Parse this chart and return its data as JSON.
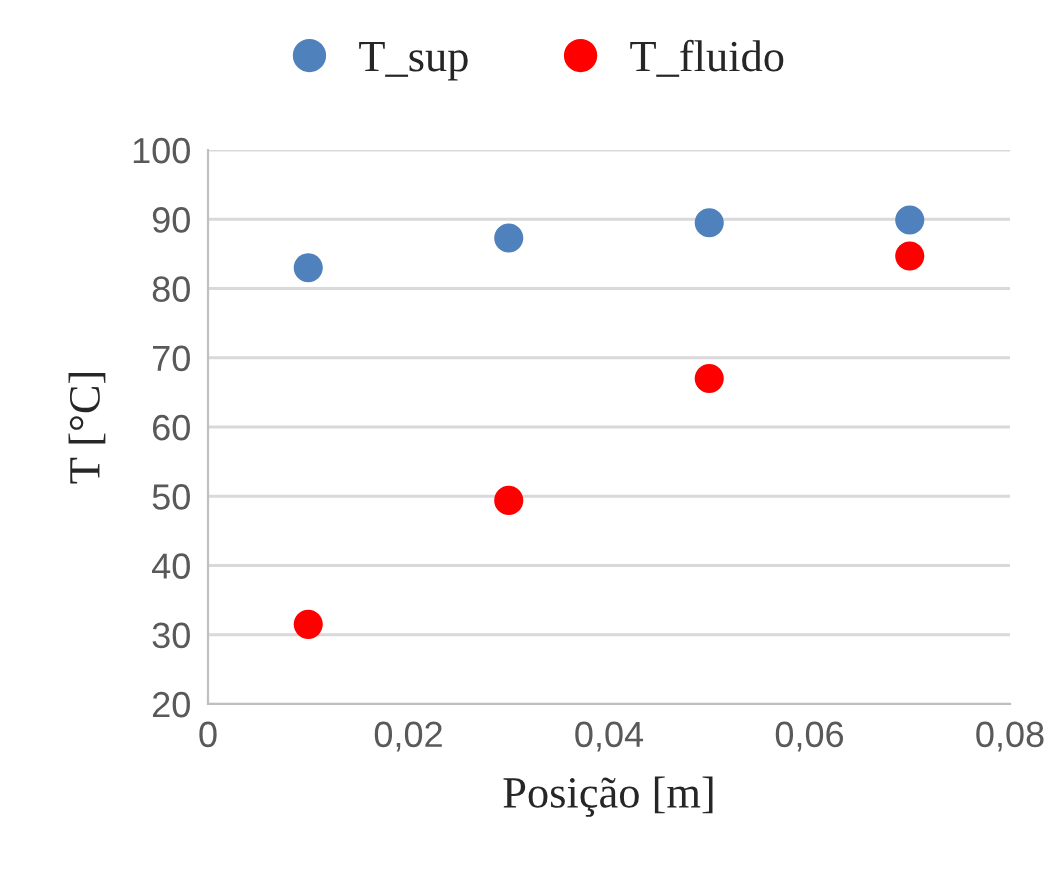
{
  "chart_data": {
    "type": "scatter",
    "xlabel": "Posição [m]",
    "ylabel": "T [°C]",
    "series": [
      {
        "name": "T_sup",
        "color": "#4f81bd",
        "x": [
          0.01,
          0.03,
          0.05,
          0.07
        ],
        "values": [
          83.0,
          87.3,
          89.5,
          89.9
        ]
      },
      {
        "name": "T_fluido",
        "color": "#ff0000",
        "x": [
          0.01,
          0.03,
          0.05,
          0.07
        ],
        "values": [
          31.5,
          49.4,
          67.0,
          84.7
        ]
      }
    ],
    "xlim": [
      0,
      0.08
    ],
    "xticks": [
      0,
      {
        "value": 0.02,
        "label": "0,02"
      },
      {
        "value": 0.04,
        "label": "0,04"
      },
      {
        "value": 0.06,
        "label": "0,06"
      },
      {
        "value": 0.08,
        "label": "0,08"
      }
    ],
    "ylim": [
      20,
      100
    ],
    "yticks": [
      20,
      30,
      40,
      50,
      60,
      70,
      80,
      90,
      100
    ],
    "grid": "y",
    "legend": "top",
    "marker": "circle"
  }
}
